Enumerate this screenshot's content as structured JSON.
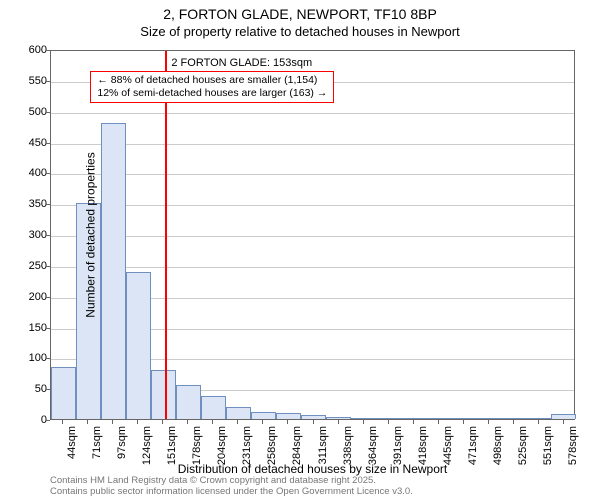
{
  "title_main": "2, FORTON GLADE, NEWPORT, TF10 8BP",
  "title_sub": "Size of property relative to detached houses in Newport",
  "ylabel": "Number of detached properties",
  "xlabel": "Distribution of detached houses by size in Newport",
  "footer_line1": "Contains HM Land Registry data © Crown copyright and database right 2025.",
  "footer_line2": "Contains public sector information licensed under the Open Government Licence v3.0.",
  "chart": {
    "type": "histogram",
    "ylim": [
      0,
      600
    ],
    "ytick_step": 50,
    "x_min": 31,
    "x_max": 591,
    "x_tick_start": 44,
    "x_tick_step": 26.7,
    "x_tick_count": 21,
    "x_tick_suffix": "sqm",
    "bar_fill": "#dbe5f5",
    "bar_stroke": "#6f8fbf",
    "grid_color": "#cccccc",
    "axis_color": "#666666",
    "background": "#ffffff",
    "bars": [
      {
        "x0": 31,
        "x1": 58,
        "y": 85
      },
      {
        "x0": 58,
        "x1": 84,
        "y": 350
      },
      {
        "x0": 84,
        "x1": 111,
        "y": 480
      },
      {
        "x0": 111,
        "x1": 138,
        "y": 238
      },
      {
        "x0": 138,
        "x1": 164,
        "y": 80
      },
      {
        "x0": 164,
        "x1": 191,
        "y": 55
      },
      {
        "x0": 191,
        "x1": 218,
        "y": 38
      },
      {
        "x0": 218,
        "x1": 244,
        "y": 20
      },
      {
        "x0": 244,
        "x1": 271,
        "y": 12
      },
      {
        "x0": 271,
        "x1": 298,
        "y": 10
      },
      {
        "x0": 298,
        "x1": 324,
        "y": 7
      },
      {
        "x0": 324,
        "x1": 351,
        "y": 4
      },
      {
        "x0": 351,
        "x1": 378,
        "y": 2
      },
      {
        "x0": 378,
        "x1": 404,
        "y": 2
      },
      {
        "x0": 404,
        "x1": 431,
        "y": 1
      },
      {
        "x0": 431,
        "x1": 458,
        "y": 2
      },
      {
        "x0": 458,
        "x1": 484,
        "y": 1
      },
      {
        "x0": 484,
        "x1": 511,
        "y": 1
      },
      {
        "x0": 511,
        "x1": 538,
        "y": 1
      },
      {
        "x0": 538,
        "x1": 564,
        "y": 1
      },
      {
        "x0": 564,
        "x1": 591,
        "y": 8
      }
    ],
    "marker": {
      "x": 153,
      "color": "#ff0000"
    },
    "annotation": {
      "title": "2 FORTON GLADE: 153sqm",
      "line1": "← 88% of detached houses are smaller (1,154)",
      "line2": "12% of semi-detached houses are larger (163) →",
      "border_color": "#ff0000"
    },
    "title_fontsize": 14,
    "subtitle_fontsize": 13,
    "label_fontsize": 12,
    "tick_fontsize": 11,
    "annot_fontsize": 10.5,
    "footer_fontsize": 9.5
  }
}
